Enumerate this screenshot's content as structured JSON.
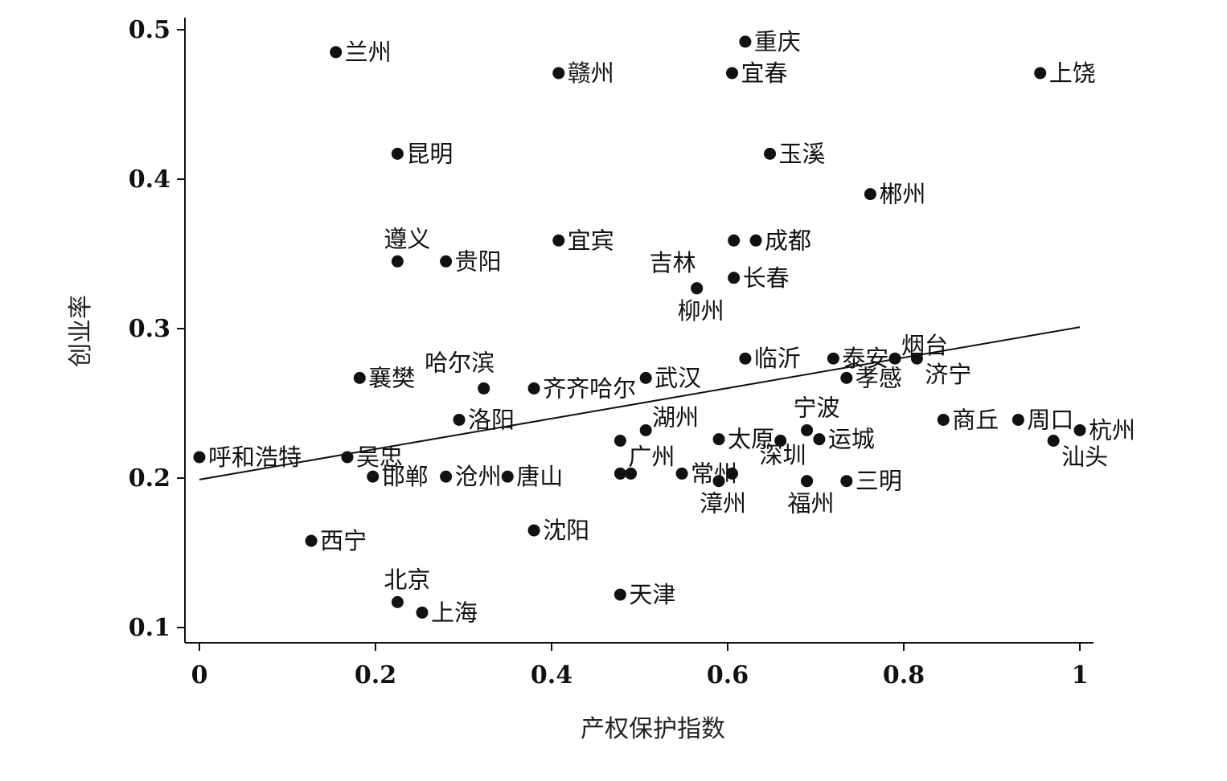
{
  "chart_data": {
    "type": "scatter",
    "xlabel": "产权保护指数",
    "ylabel": "创业率",
    "xlim": [
      -0.02,
      1.02
    ],
    "ylim": [
      0.09,
      0.51
    ],
    "xticks": [
      {
        "value": 0,
        "label": "0"
      },
      {
        "value": 0.2,
        "label": "0.2"
      },
      {
        "value": 0.4,
        "label": "0.4"
      },
      {
        "value": 0.6,
        "label": "0.6"
      },
      {
        "value": 0.8,
        "label": "0.8"
      },
      {
        "value": 1,
        "label": "1"
      }
    ],
    "yticks": [
      {
        "value": 0.1,
        "label": "0.1"
      },
      {
        "value": 0.2,
        "label": "0.2"
      },
      {
        "value": 0.3,
        "label": "0.3"
      },
      {
        "value": 0.4,
        "label": "0.4"
      },
      {
        "value": 0.5,
        "label": "0.5"
      }
    ],
    "grid": false,
    "fit_line": {
      "x": [
        0,
        1
      ],
      "y": [
        0.199,
        0.301
      ]
    },
    "points": [
      {
        "x": 0.155,
        "y": 0.485,
        "label": "兰州",
        "pos": "right"
      },
      {
        "x": 0.408,
        "y": 0.471,
        "label": "赣州",
        "pos": "right"
      },
      {
        "x": 0.62,
        "y": 0.492,
        "label": "重庆",
        "pos": "right"
      },
      {
        "x": 0.605,
        "y": 0.471,
        "label": "宜春",
        "pos": "right"
      },
      {
        "x": 0.955,
        "y": 0.471,
        "label": "上饶",
        "pos": "right"
      },
      {
        "x": 0.225,
        "y": 0.417,
        "label": "昆明",
        "pos": "right"
      },
      {
        "x": 0.648,
        "y": 0.417,
        "label": "玉溪",
        "pos": "right"
      },
      {
        "x": 0.762,
        "y": 0.39,
        "label": "郴州",
        "pos": "right"
      },
      {
        "x": 0.225,
        "y": 0.345,
        "label": "遵义",
        "pos": "above"
      },
      {
        "x": 0.28,
        "y": 0.345,
        "label": "贵阳",
        "pos": "right"
      },
      {
        "x": 0.408,
        "y": 0.359,
        "label": "宜宾",
        "pos": "right"
      },
      {
        "x": 0.607,
        "y": 0.359,
        "label": "",
        "pos": "right"
      },
      {
        "x": 0.632,
        "y": 0.359,
        "label": "成都",
        "pos": "right"
      },
      {
        "x": 0.565,
        "y": 0.327,
        "label": "吉林",
        "pos": "aboveleft"
      },
      {
        "x": 0.565,
        "y": 0.327,
        "label": "柳州",
        "pos": "below"
      },
      {
        "x": 0.607,
        "y": 0.334,
        "label": "长春",
        "pos": "right"
      },
      {
        "x": 0.62,
        "y": 0.28,
        "label": "临沂",
        "pos": "right"
      },
      {
        "x": 0.72,
        "y": 0.28,
        "label": "泰安",
        "pos": "right"
      },
      {
        "x": 0.79,
        "y": 0.28,
        "label": "烟台",
        "pos": "aboveright"
      },
      {
        "x": 0.815,
        "y": 0.28,
        "label": "济宁",
        "pos": "belowright"
      },
      {
        "x": 0.735,
        "y": 0.267,
        "label": "孝感",
        "pos": "right"
      },
      {
        "x": 0.182,
        "y": 0.267,
        "label": "襄樊",
        "pos": "right"
      },
      {
        "x": 0.323,
        "y": 0.26,
        "label": "哈尔滨",
        "pos": "aboveleft"
      },
      {
        "x": 0.38,
        "y": 0.26,
        "label": "齐齐哈尔",
        "pos": "right"
      },
      {
        "x": 0.507,
        "y": 0.267,
        "label": "武汉",
        "pos": "right"
      },
      {
        "x": 0.295,
        "y": 0.239,
        "label": "洛阳",
        "pos": "right"
      },
      {
        "x": 0.507,
        "y": 0.232,
        "label": "湖州",
        "pos": "aboveright"
      },
      {
        "x": 0.478,
        "y": 0.225,
        "label": "广州",
        "pos": "belowright"
      },
      {
        "x": 0.59,
        "y": 0.226,
        "label": "太原",
        "pos": "right"
      },
      {
        "x": 0.66,
        "y": 0.225,
        "label": "",
        "pos": "right"
      },
      {
        "x": 0.69,
        "y": 0.232,
        "label": "宁波",
        "pos": "above"
      },
      {
        "x": 0.704,
        "y": 0.226,
        "label": "运城",
        "pos": "right"
      },
      {
        "x": 0.69,
        "y": 0.198,
        "label": "深圳",
        "pos": "aboveleft"
      },
      {
        "x": 0.845,
        "y": 0.239,
        "label": "商丘",
        "pos": "right"
      },
      {
        "x": 0.93,
        "y": 0.239,
        "label": "周口",
        "pos": "right"
      },
      {
        "x": 1.0,
        "y": 0.232,
        "label": "杭州",
        "pos": "right"
      },
      {
        "x": 0.97,
        "y": 0.225,
        "label": "汕头",
        "pos": "belowright"
      },
      {
        "x": 0.0,
        "y": 0.214,
        "label": "呼和浩特",
        "pos": "right"
      },
      {
        "x": 0.168,
        "y": 0.214,
        "label": "吴忠",
        "pos": "right"
      },
      {
        "x": 0.197,
        "y": 0.201,
        "label": "邯郸",
        "pos": "right"
      },
      {
        "x": 0.28,
        "y": 0.201,
        "label": "沧州",
        "pos": "right"
      },
      {
        "x": 0.35,
        "y": 0.201,
        "label": "唐山",
        "pos": "right"
      },
      {
        "x": 0.478,
        "y": 0.203,
        "label": "",
        "pos": "right"
      },
      {
        "x": 0.49,
        "y": 0.203,
        "label": "",
        "pos": "right"
      },
      {
        "x": 0.548,
        "y": 0.203,
        "label": "常州",
        "pos": "right"
      },
      {
        "x": 0.59,
        "y": 0.198,
        "label": "漳州",
        "pos": "below"
      },
      {
        "x": 0.605,
        "y": 0.203,
        "label": "",
        "pos": "right"
      },
      {
        "x": 0.735,
        "y": 0.198,
        "label": "三明",
        "pos": "right"
      },
      {
        "x": 0.69,
        "y": 0.198,
        "label": "福州",
        "pos": "below"
      },
      {
        "x": 0.127,
        "y": 0.158,
        "label": "西宁",
        "pos": "right"
      },
      {
        "x": 0.38,
        "y": 0.165,
        "label": "沈阳",
        "pos": "right"
      },
      {
        "x": 0.225,
        "y": 0.117,
        "label": "北京",
        "pos": "above"
      },
      {
        "x": 0.253,
        "y": 0.11,
        "label": "上海",
        "pos": "right"
      },
      {
        "x": 0.478,
        "y": 0.122,
        "label": "天津",
        "pos": "right"
      }
    ]
  }
}
